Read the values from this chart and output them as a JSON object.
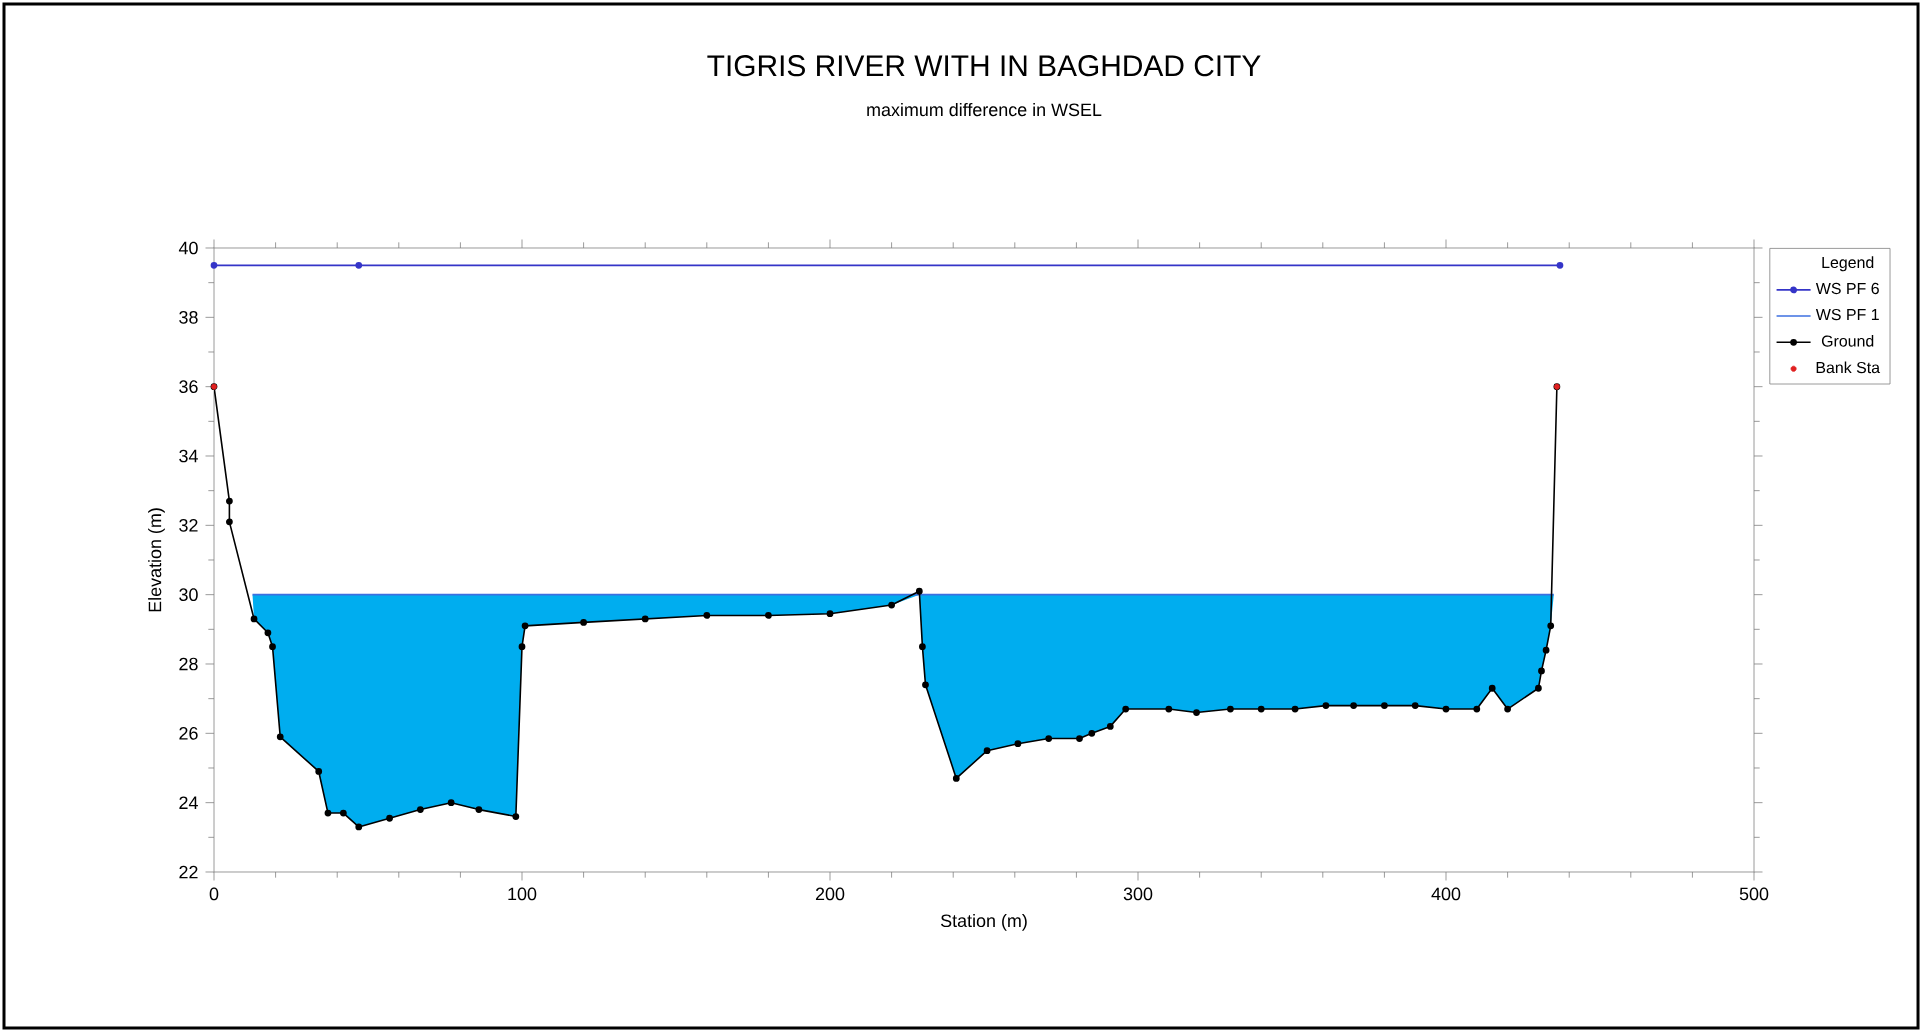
{
  "chart_data": {
    "type": "line",
    "title": "TIGRIS RIVER WITH IN BAGHDAD CITY",
    "subtitle": "maximum difference in WSEL",
    "xlabel": "Station (m)",
    "ylabel": "Elevation (m)",
    "legend_title": "Legend",
    "legend": "right",
    "grid": false,
    "xlim": [
      0,
      500
    ],
    "xticks": [
      0,
      100,
      200,
      300,
      400,
      500
    ],
    "ylim": [
      22,
      40
    ],
    "yticks": [
      22,
      24,
      26,
      28,
      30,
      32,
      34,
      36,
      38,
      40
    ],
    "series": [
      {
        "name": "WS PF 6",
        "type": "line",
        "color": "#3535c8",
        "marker": "circle",
        "x": [
          0,
          47,
          437
        ],
        "values": [
          39.5,
          39.5,
          39.5
        ]
      },
      {
        "name": "WS PF 1",
        "color": "#3d6fe0",
        "marker": "none",
        "x": [
          12.5,
          13,
          17.5,
          19,
          21.5,
          34,
          37,
          42,
          47,
          57,
          67,
          77,
          86,
          98,
          100,
          101,
          120,
          140,
          160,
          180,
          200,
          220,
          229,
          230,
          231,
          241,
          251,
          261,
          271,
          281,
          285,
          291,
          296,
          310,
          319,
          330,
          340,
          351,
          361,
          370,
          380,
          390,
          400,
          410,
          415,
          420,
          430,
          431,
          432.5,
          434,
          435
        ],
        "values": [
          30,
          30,
          30,
          30,
          30,
          30,
          30,
          30,
          30,
          30,
          30,
          30,
          30,
          30,
          30,
          30,
          30,
          30,
          30,
          30,
          30,
          30,
          30,
          30,
          30,
          30,
          30,
          30,
          30,
          30,
          30,
          30,
          30,
          30,
          30,
          30,
          30,
          30,
          30,
          30,
          30,
          30,
          30,
          30,
          30,
          30,
          30,
          30,
          30,
          30,
          30
        ],
        "upper": [
          30,
          30,
          30,
          30,
          30,
          30,
          30,
          30,
          30,
          30,
          30,
          30,
          30,
          30,
          30,
          30,
          30,
          30,
          30,
          30,
          30,
          30,
          30,
          30,
          30,
          30,
          30,
          30,
          30,
          30,
          30,
          30,
          30,
          30,
          30,
          30,
          30,
          30,
          30,
          30,
          30,
          30,
          30,
          30,
          30,
          30,
          30,
          30,
          30,
          30,
          30
        ],
        "lower": [
          30,
          29.3,
          28.9,
          28.5,
          25.9,
          24.9,
          23.7,
          23.7,
          23.3,
          23.55,
          23.8,
          24,
          23.8,
          23.6,
          28.5,
          29.1,
          29.2,
          29.3,
          29.4,
          29.4,
          29.45,
          29.7,
          30,
          28.5,
          27.4,
          24.7,
          25.5,
          25.7,
          25.85,
          25.85,
          26,
          26.2,
          26.7,
          26.7,
          26.6,
          26.7,
          26.7,
          26.7,
          26.8,
          26.8,
          26.8,
          26.8,
          26.7,
          26.7,
          27.3,
          26.7,
          27.3,
          27.8,
          28.4,
          29.1,
          30
        ]
      },
      {
        "name": "Ground",
        "type": "line",
        "color": "#000000",
        "marker": "circle",
        "x": [
          0,
          5,
          5,
          13,
          17.5,
          19,
          21.5,
          34,
          37,
          42,
          47,
          57,
          67,
          77,
          86,
          98,
          100,
          101,
          120,
          140,
          160,
          180,
          200,
          220,
          229,
          230,
          231,
          241,
          251,
          261,
          271,
          281,
          285,
          291,
          296,
          310,
          319,
          330,
          340,
          351,
          361,
          370,
          380,
          390,
          400,
          410,
          415,
          420,
          430,
          431,
          432.5,
          434,
          436
        ],
        "values": [
          36,
          32.7,
          32.1,
          29.3,
          28.9,
          28.5,
          25.9,
          24.9,
          23.7,
          23.7,
          23.3,
          23.55,
          23.8,
          24,
          23.8,
          23.6,
          28.5,
          29.1,
          29.2,
          29.3,
          29.4,
          29.4,
          29.45,
          29.7,
          30.1,
          28.5,
          27.4,
          24.7,
          25.5,
          25.7,
          25.85,
          25.85,
          26,
          26.2,
          26.7,
          26.7,
          26.6,
          26.7,
          26.7,
          26.7,
          26.8,
          26.8,
          26.8,
          26.8,
          26.7,
          26.7,
          27.3,
          26.7,
          27.3,
          27.8,
          28.4,
          29.1,
          36
        ]
      },
      {
        "name": "Bank Sta",
        "type": "scatter",
        "color": "#e02020",
        "marker": "circle",
        "x": [
          0,
          436
        ],
        "values": [
          36,
          36
        ]
      }
    ]
  }
}
